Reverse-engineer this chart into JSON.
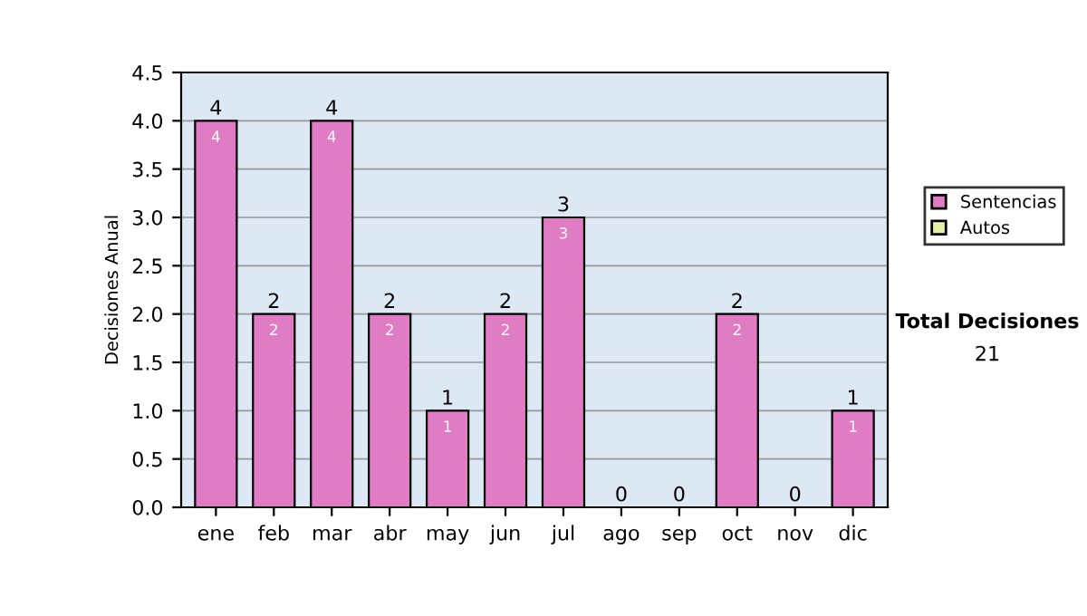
{
  "chart_data": {
    "type": "bar",
    "stacked": true,
    "ylabel": "Decisiones Anual",
    "categories": [
      "ene",
      "feb",
      "mar",
      "abr",
      "may",
      "jun",
      "jul",
      "ago",
      "sep",
      "oct",
      "nov",
      "dic"
    ],
    "series": [
      {
        "name": "Sentencias",
        "color": "#e07cc4",
        "values": [
          4,
          2,
          4,
          2,
          1,
          2,
          3,
          0,
          0,
          2,
          0,
          1
        ],
        "value_labels": [
          "4",
          "2",
          "4",
          "2",
          "1",
          "2",
          "3",
          null,
          null,
          "2",
          null,
          "1"
        ]
      },
      {
        "name": "Autos",
        "color": "#e8f0a8",
        "values": [
          0,
          0,
          0,
          0,
          0,
          0,
          0,
          0,
          0,
          0,
          0,
          0
        ]
      }
    ],
    "totals": [
      "4",
      "2",
      "4",
      "2",
      "1",
      "2",
      "3",
      "0",
      "0",
      "2",
      "0",
      "1"
    ],
    "ylim": [
      0,
      4.5
    ],
    "yticks": [
      {
        "value": 0,
        "label": "0.0"
      },
      0.5,
      {
        "value": 1,
        "label": "1.0"
      },
      1.5,
      {
        "value": 2,
        "label": "2.0"
      },
      2.5,
      {
        "value": 3,
        "label": "3.0"
      },
      3.5,
      {
        "value": 4,
        "label": "4.0"
      },
      4.5
    ],
    "grid": "y",
    "legend": "right",
    "annotations": [
      "Total Decisiones",
      "21"
    ]
  }
}
